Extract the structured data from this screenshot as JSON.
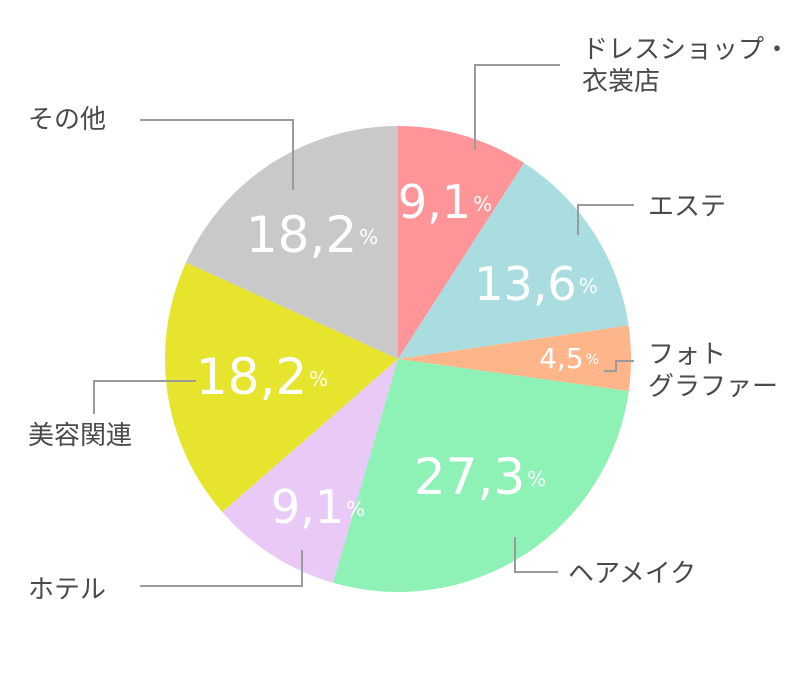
{
  "chart_data": {
    "type": "pie",
    "title": "",
    "slices": [
      {
        "label_lines": [
          "ドレスショップ・",
          "衣裳店"
        ],
        "value": 9.1,
        "display": "9,1",
        "color": "#FF9499"
      },
      {
        "label_lines": [
          "エステ"
        ],
        "value": 13.6,
        "display": "13,6",
        "color": "#A9DDE0"
      },
      {
        "label_lines": [
          "フォト",
          "グラファー"
        ],
        "value": 4.5,
        "display": "4,5",
        "color": "#FFB58A"
      },
      {
        "label_lines": [
          "ヘアメイク"
        ],
        "value": 27.3,
        "display": "27,3",
        "color": "#8EF1B5"
      },
      {
        "label_lines": [
          "ホテル"
        ],
        "value": 9.1,
        "display": "9,1",
        "color": "#E9C9F6"
      },
      {
        "label_lines": [
          "美容関連"
        ],
        "value": 18.2,
        "display": "18,2",
        "color": "#E6E42C"
      },
      {
        "label_lines": [
          "その他"
        ],
        "value": 18.2,
        "display": "18,2",
        "color": "#C9C9C9"
      }
    ],
    "unit_symbol": "%",
    "start_angle_deg": 0,
    "direction": "clockwise",
    "legend": "none"
  }
}
